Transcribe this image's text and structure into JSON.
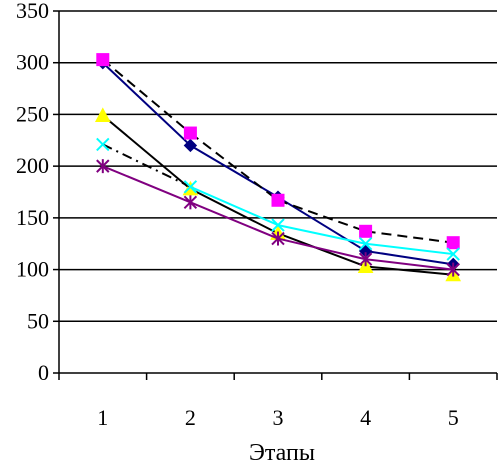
{
  "chart_data": {
    "type": "line",
    "title": "",
    "xlabel": "Этапы",
    "ylabel": "",
    "ylim": [
      0,
      350
    ],
    "yticks": [
      0,
      50,
      100,
      150,
      200,
      250,
      300,
      350
    ],
    "categories": [
      "1",
      "2",
      "3",
      "4",
      "5"
    ],
    "grid": "horizontal",
    "legend": "none",
    "series": [
      {
        "values": [
          300,
          220,
          170,
          118,
          105
        ],
        "color": "#000080",
        "marker": "diamond",
        "dash": "solid"
      },
      {
        "values": [
          303,
          232,
          167,
          137,
          126
        ],
        "color": "#ff00ff",
        "marker": "square",
        "line_color": "#000000",
        "dash": "dashed"
      },
      {
        "values": [
          249,
          178,
          135,
          103,
          95
        ],
        "color": "#ffff00",
        "marker": "triangle",
        "line_color": "#000000",
        "dash": "solid"
      },
      {
        "values": [
          221,
          180,
          143,
          125,
          115
        ],
        "color": "#00ffff",
        "marker": "x",
        "line_color": "#00ffff",
        "dash": "solid",
        "lead_color": "#000000",
        "lead_dash": "dashdot"
      },
      {
        "values": [
          200,
          165,
          130,
          110,
          100
        ],
        "color": "#800080",
        "marker": "star",
        "line_color": "#800080",
        "dash": "solid"
      }
    ]
  }
}
